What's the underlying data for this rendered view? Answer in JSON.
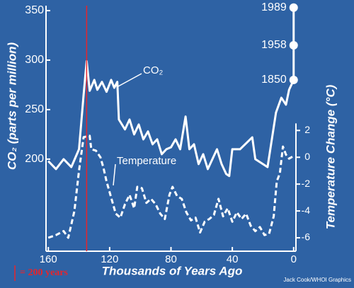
{
  "chart_data": {
    "type": "line",
    "background": "#2e62a4",
    "x_label": "Thousands of Years Ago",
    "y_label": "CO₂ (parts per million)",
    "y2_label": "Temperature Change (°C)",
    "credit": "Jack Cook/WHOI Graphics",
    "xlim": [
      161.5,
      -1.5
    ],
    "xticks": [
      160,
      120,
      80,
      40,
      0
    ],
    "ylim": [
      107,
      355
    ],
    "yticks": [
      200,
      250,
      300,
      350
    ],
    "y2lim": [
      -7,
      11.3
    ],
    "y2ticks": [
      -6,
      -4,
      -2,
      0,
      2
    ],
    "series": [
      {
        "name": "CO₂",
        "color": "#ffffff",
        "dash": false,
        "x": [
          160,
          155,
          150,
          145,
          140,
          137,
          135,
          133,
          130,
          128,
          125,
          122,
          119,
          117,
          115,
          114,
          110,
          107,
          104,
          101,
          98,
          95,
          92,
          89,
          86,
          83,
          80,
          77,
          74,
          70.5,
          68,
          65,
          62,
          59,
          56,
          53,
          50,
          47,
          44,
          42,
          40,
          35,
          27,
          25,
          20,
          17,
          11.5,
          8,
          5,
          3,
          0
        ],
        "values": [
          198,
          190,
          200,
          192,
          210,
          265,
          299,
          269,
          280,
          270,
          278,
          268,
          280,
          272,
          278,
          240,
          230,
          240,
          225,
          235,
          220,
          228,
          215,
          220,
          205,
          210,
          212,
          220,
          210,
          243,
          210,
          215,
          195,
          205,
          190,
          200,
          210,
          195,
          185,
          183,
          210,
          210,
          222,
          200,
          195,
          192,
          247,
          262,
          255,
          270,
          280
        ]
      },
      {
        "name": "Temperature",
        "color": "#ffffff",
        "dash": true,
        "axis": "y2",
        "x": [
          160,
          155,
          150,
          147,
          143,
          140,
          137,
          133,
          132,
          129,
          126,
          124,
          122,
          119,
          116,
          113,
          110,
          107,
          104,
          102,
          99,
          96,
          93,
          90,
          87,
          84,
          81,
          79,
          76,
          73,
          70,
          67,
          64,
          61,
          58,
          55,
          52,
          49,
          46,
          43,
          40,
          37,
          34,
          31,
          28,
          25,
          22,
          19,
          16,
          13,
          11,
          9,
          7,
          5,
          3,
          0
        ],
        "values": [
          -6,
          -5.8,
          -5.5,
          -6,
          -4,
          -1,
          1.5,
          1.6,
          0.6,
          0.5,
          0,
          -0.8,
          -1.8,
          -3,
          -4.2,
          -4.5,
          -3.5,
          -2.8,
          -3.8,
          -2.2,
          -2.3,
          -3.4,
          -3.1,
          -3.5,
          -4.2,
          -4.6,
          -2.8,
          -2.2,
          -2.9,
          -3.1,
          -4.1,
          -4.7,
          -4.5,
          -5.6,
          -4.8,
          -4.6,
          -4.3,
          -3.1,
          -4.4,
          -3.8,
          -4.8,
          -4.1,
          -4.6,
          -4.2,
          -5.1,
          -5.5,
          -5.2,
          -5.8,
          -5.7,
          -4.4,
          -1.8,
          -1.2,
          0.8,
          0.2,
          -0.1,
          0.1
        ]
      }
    ],
    "year_markers": [
      {
        "label": "1850",
        "value": 280
      },
      {
        "label": "1958",
        "value": 315
      },
      {
        "label": "1989",
        "value": 353
      }
    ],
    "marker_line": {
      "x": 135,
      "color": "#e8242b"
    },
    "legend_note": "= 200 years"
  }
}
